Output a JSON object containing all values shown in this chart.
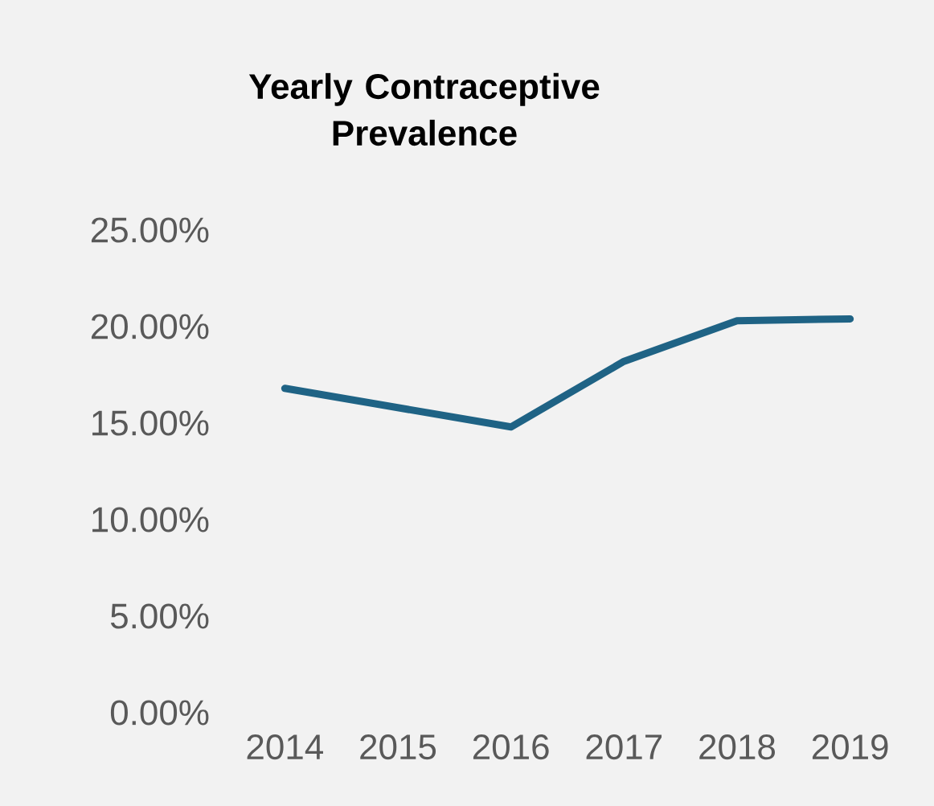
{
  "chart_data": {
    "type": "line",
    "title": "Yearly Contraceptive Prevalence",
    "categories": [
      "2014",
      "2015",
      "2016",
      "2017",
      "2018",
      "2019"
    ],
    "series": [
      {
        "color": "#1f6385",
        "values": [
          16.8,
          15.8,
          14.8,
          18.2,
          20.3,
          20.4
        ]
      }
    ],
    "ylim": [
      0,
      25
    ],
    "yticks": [
      {
        "value": 0,
        "label": "0.00%"
      },
      {
        "value": 5,
        "label": "5.00%"
      },
      {
        "value": 10,
        "label": "10.00%"
      },
      {
        "value": 15,
        "label": "15.00%"
      },
      {
        "value": 20,
        "label": "20.00%"
      },
      {
        "value": 25,
        "label": "25.00%"
      }
    ],
    "grid": false,
    "marker": "none",
    "line_style": "solid"
  }
}
